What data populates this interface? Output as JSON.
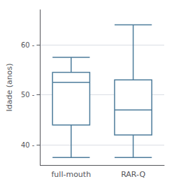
{
  "chart_data": {
    "type": "boxplot",
    "ylabel": "Idade (anos)",
    "categories": [
      "full-mouth",
      "RAR-Q"
    ],
    "series": [
      {
        "color": "#4d7c9b",
        "values": [
          {
            "whislo": 37.5,
            "q1": 44.0,
            "median": 52.5,
            "q3": 54.5,
            "whishi": 57.5
          },
          {
            "whislo": 37.5,
            "q1": 42.0,
            "median": 47.0,
            "q3": 53.0,
            "whishi": 64.0
          }
        ]
      }
    ],
    "ylim": [
      36,
      67
    ],
    "yticks": [
      {
        "value": 40,
        "label": "40 -"
      },
      {
        "value": 50,
        "label": "50 -"
      },
      {
        "value": 60,
        "label": "60 -"
      }
    ],
    "grid": true
  }
}
